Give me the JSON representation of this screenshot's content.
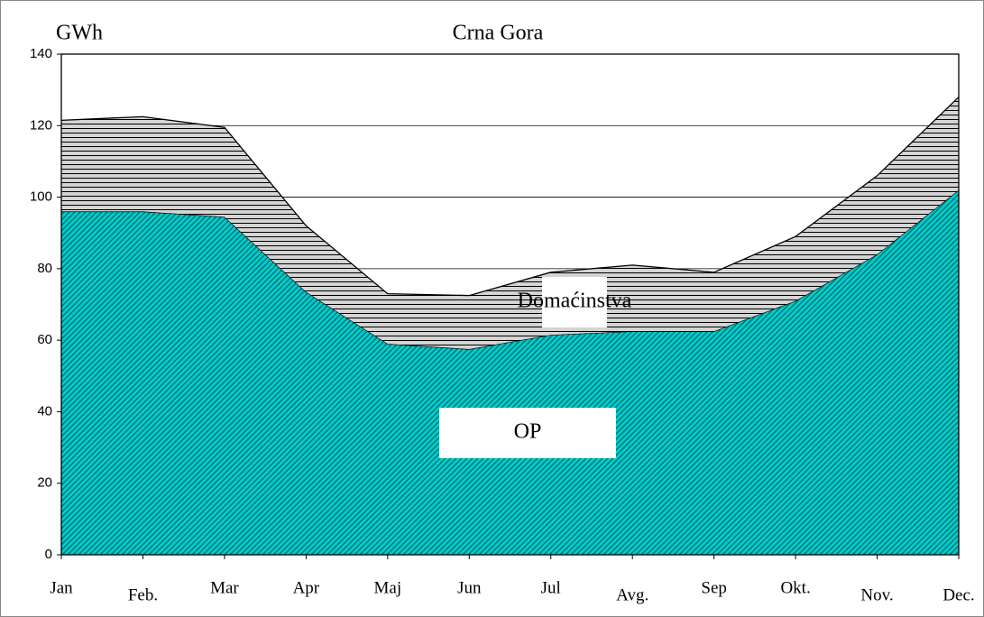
{
  "chart_data": {
    "type": "stacked_area",
    "title": "Crna Gora",
    "y_label": "GWh",
    "categories": [
      "Jan",
      "Feb.",
      "Mar",
      "Apr",
      "Maj",
      "Jun",
      "Jul",
      "Avg.",
      "Sep",
      "Okt.",
      "Nov.",
      "Dec."
    ],
    "series": [
      {
        "name": "Domaćinstva",
        "color": "#00cccc",
        "values": [
          96,
          96,
          94.5,
          73.5,
          59,
          57.5,
          61.5,
          62.5,
          62.5,
          71,
          84,
          102
        ]
      },
      {
        "name": "OP",
        "color": "#c0c0c0",
        "values": [
          25.5,
          26.5,
          25,
          18.5,
          14,
          15,
          17.5,
          18.5,
          16.5,
          18,
          22,
          26
        ]
      }
    ],
    "ylim": [
      0,
      140
    ],
    "yticks": [
      0,
      20,
      40,
      60,
      80,
      100,
      120,
      140
    ],
    "grid": true
  }
}
